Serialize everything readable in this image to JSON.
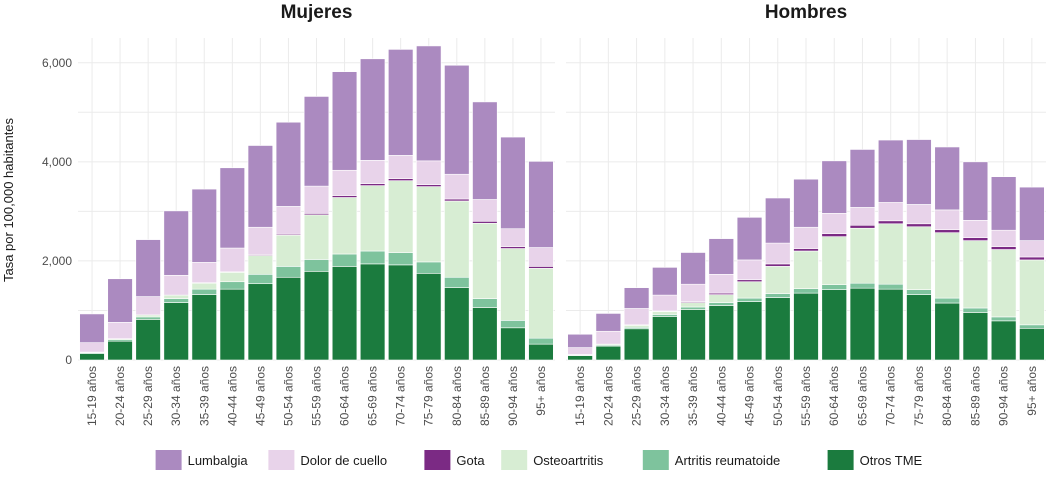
{
  "chart_data": {
    "type": "bar",
    "stacked": true,
    "ylabel": "Tasa por 100,000 habitantes",
    "xlabel": "",
    "ylim": [
      0,
      6500
    ],
    "yticks": [
      0,
      2000,
      4000,
      6000
    ],
    "ytick_labels": [
      "0",
      "2,000",
      "4,000",
      "6,000"
    ],
    "legend_position": "bottom",
    "categories": [
      "15-19 años",
      "20-24 años",
      "25-29 años",
      "30-34 años",
      "35-39 años",
      "40-44 años",
      "45-49 años",
      "50-54 años",
      "55-59 años",
      "60-64 años",
      "65-69 años",
      "70-74 años",
      "75-79 años",
      "80-84 años",
      "85-89 años",
      "90-94 años",
      "95+ años"
    ],
    "series_meta": [
      {
        "name": "Lumbalgia",
        "color": "#ab8ac0"
      },
      {
        "name": "Dolor de cuello",
        "color": "#e8d3ea"
      },
      {
        "name": "Gota",
        "color": "#7b2a84"
      },
      {
        "name": "Osteoartritis",
        "color": "#d7edd3"
      },
      {
        "name": "Artritis reumatoide",
        "color": "#7ec39d"
      },
      {
        "name": "Otros TME",
        "color": "#1b7b3e"
      }
    ],
    "panels": [
      {
        "title": "Mujeres",
        "series": [
          {
            "name": "Otros TME",
            "values": [
              130,
              380,
              820,
              1160,
              1320,
              1430,
              1540,
              1670,
              1790,
              1890,
              1940,
              1920,
              1750,
              1460,
              1060,
              650,
              320
            ]
          },
          {
            "name": "Artritis reumatoide",
            "values": [
              20,
              30,
              50,
              80,
              110,
              150,
              190,
              220,
              240,
              250,
              260,
              250,
              230,
              210,
              180,
              150,
              120
            ]
          },
          {
            "name": "Osteoartritis",
            "values": [
              10,
              20,
              40,
              70,
              120,
              190,
              380,
              630,
              900,
              1140,
              1320,
              1450,
              1520,
              1540,
              1520,
              1450,
              1410
            ]
          },
          {
            "name": "Gota",
            "values": [
              0,
              0,
              0,
              0,
              10,
              10,
              20,
              20,
              30,
              40,
              40,
              40,
              40,
              40,
              40,
              40,
              40
            ]
          },
          {
            "name": "Dolor de cuello",
            "values": [
              190,
              330,
              370,
              400,
              410,
              480,
              550,
              560,
              550,
              510,
              470,
              470,
              480,
              500,
              440,
              360,
              380
            ]
          },
          {
            "name": "Lumbalgia",
            "values": [
              580,
              880,
              1150,
              1300,
              1480,
              1620,
              1650,
              1700,
              1810,
              1990,
              2050,
              2140,
              2320,
              2200,
              1970,
              1850,
              1740
            ]
          }
        ]
      },
      {
        "title": "Hombres",
        "series": [
          {
            "name": "Otros TME",
            "values": [
              90,
              280,
              630,
              880,
              1020,
              1100,
              1180,
              1260,
              1350,
              1420,
              1450,
              1430,
              1320,
              1150,
              960,
              790,
              640
            ]
          },
          {
            "name": "Artritis reumatoide",
            "values": [
              10,
              20,
              30,
              40,
              50,
              60,
              70,
              80,
              90,
              100,
              100,
              100,
              100,
              100,
              90,
              80,
              70
            ]
          },
          {
            "name": "Osteoartritis",
            "values": [
              10,
              20,
              40,
              60,
              90,
              160,
              330,
              550,
              760,
              970,
              1110,
              1220,
              1270,
              1320,
              1360,
              1360,
              1310
            ]
          },
          {
            "name": "Gota",
            "values": [
              0,
              0,
              10,
              10,
              20,
              30,
              40,
              50,
              50,
              60,
              60,
              60,
              60,
              60,
              60,
              60,
              60
            ]
          },
          {
            "name": "Dolor de cuello",
            "values": [
              140,
              260,
              330,
              320,
              350,
              380,
              400,
              420,
              430,
              410,
              360,
              370,
              390,
              400,
              350,
              330,
              330
            ]
          },
          {
            "name": "Lumbalgia",
            "values": [
              270,
              360,
              420,
              560,
              640,
              720,
              860,
              910,
              970,
              1060,
              1170,
              1260,
              1310,
              1270,
              1180,
              1080,
              1080
            ]
          }
        ]
      }
    ]
  }
}
